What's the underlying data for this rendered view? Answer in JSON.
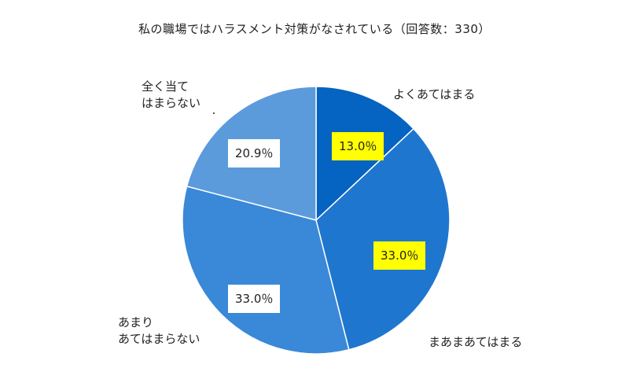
{
  "chart_data": {
    "type": "pie",
    "title": "私の職場ではハラスメント対策がなされている（回答数：330）",
    "slices": [
      {
        "label": "よくあてはまる",
        "value": 13.0,
        "value_label": "13.0％",
        "color": "#0563c1",
        "label_bg": "#ffff00"
      },
      {
        "label": "まあまあてはまる",
        "value": 33.0,
        "value_label": "33.0％",
        "color": "#1f76cf",
        "label_bg": "#ffff00"
      },
      {
        "label": "あまり\nあてはまらない",
        "value": 33.0,
        "value_label": "33.0％",
        "color": "#3a88d8",
        "label_bg": "#ffffff"
      },
      {
        "label": "全く当て\nはまらない",
        "value": 20.9,
        "value_label": "20.9％",
        "color": "#5b9bdc",
        "label_bg": "#ffffff"
      }
    ],
    "start_angle_deg": 0,
    "direction": "clockwise",
    "legend": "none"
  }
}
